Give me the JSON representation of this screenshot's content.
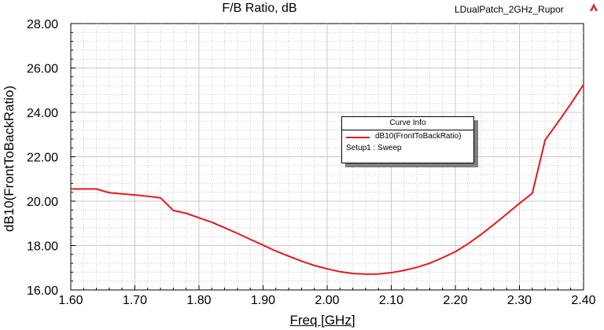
{
  "header": {
    "title": "F/B Ratio, dB",
    "project": "LDualPatch_2GHz_Rupor"
  },
  "legend": {
    "heading": "Curve Info",
    "setup": "Setup1 : Sweep"
  },
  "colors": {
    "curve": "#e31a1c",
    "grid": "#c8c8c8",
    "shadow": "#7f7f7f"
  },
  "chart_data": {
    "type": "line",
    "title": "F/B Ratio, dB",
    "xlabel": "Freq [GHz]",
    "ylabel": "dB10(FrontToBackRatio)",
    "xlim": [
      1.6,
      2.4
    ],
    "ylim": [
      16.0,
      28.0
    ],
    "x_ticks": [
      "1.60",
      "1.70",
      "1.80",
      "1.90",
      "2.00",
      "2.10",
      "2.20",
      "2.30",
      "2.40"
    ],
    "y_ticks": [
      "16.00",
      "18.00",
      "20.00",
      "22.00",
      "24.00",
      "26.00",
      "28.00"
    ],
    "grid": true,
    "legend_position": "center-right",
    "series": [
      {
        "name": "dB10(FrontToBackRatio)",
        "x": [
          1.6,
          1.62,
          1.64,
          1.66,
          1.68,
          1.7,
          1.72,
          1.74,
          1.76,
          1.78,
          1.8,
          1.82,
          1.84,
          1.86,
          1.88,
          1.9,
          1.92,
          1.94,
          1.96,
          1.98,
          2.0,
          2.02,
          2.04,
          2.06,
          2.08,
          2.1,
          2.12,
          2.14,
          2.16,
          2.18,
          2.2,
          2.22,
          2.24,
          2.26,
          2.28,
          2.3,
          2.32,
          2.34,
          2.36,
          2.38,
          2.4
        ],
        "y": [
          20.55,
          20.55,
          20.55,
          20.38,
          20.33,
          20.28,
          20.22,
          20.15,
          19.58,
          19.45,
          19.25,
          19.05,
          18.8,
          18.55,
          18.28,
          18.02,
          17.75,
          17.52,
          17.3,
          17.1,
          16.95,
          16.82,
          16.74,
          16.71,
          16.72,
          16.78,
          16.88,
          17.02,
          17.2,
          17.45,
          17.72,
          18.08,
          18.5,
          18.95,
          19.42,
          19.9,
          20.35,
          22.75,
          23.55,
          24.38,
          25.25
        ]
      }
    ]
  }
}
